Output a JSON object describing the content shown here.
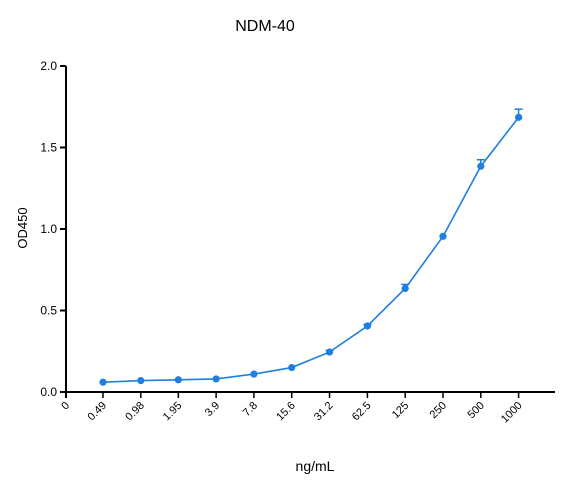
{
  "chart_data": {
    "type": "line",
    "title": "NDM-40",
    "xlabel": "ng/mL",
    "ylabel": "OD450",
    "x_scale": "log2",
    "x_tick_labels": [
      "0",
      "0.49",
      "0.98",
      "1.95",
      "3.9",
      "7.8",
      "15.6",
      "31.2",
      "62.5",
      "125",
      "250",
      "500",
      "1000"
    ],
    "ylim": [
      0,
      2.0
    ],
    "y_ticks": [
      "0.0",
      "0.5",
      "1.0",
      "1.5",
      "2.0"
    ],
    "grid": false,
    "series": [
      {
        "color": "#1e7fe0",
        "x": [
          0.49,
          0.98,
          1.95,
          3.9,
          7.8,
          15.6,
          31.2,
          62.5,
          125,
          250,
          500,
          1000
        ],
        "y": [
          0.06,
          0.07,
          0.075,
          0.08,
          0.11,
          0.15,
          0.245,
          0.405,
          0.635,
          0.955,
          1.385,
          1.685
        ],
        "error": [
          0.005,
          0.005,
          0.005,
          0.005,
          0.005,
          0.005,
          0.01,
          0.01,
          0.025,
          0.005,
          0.04,
          0.05
        ]
      }
    ]
  }
}
